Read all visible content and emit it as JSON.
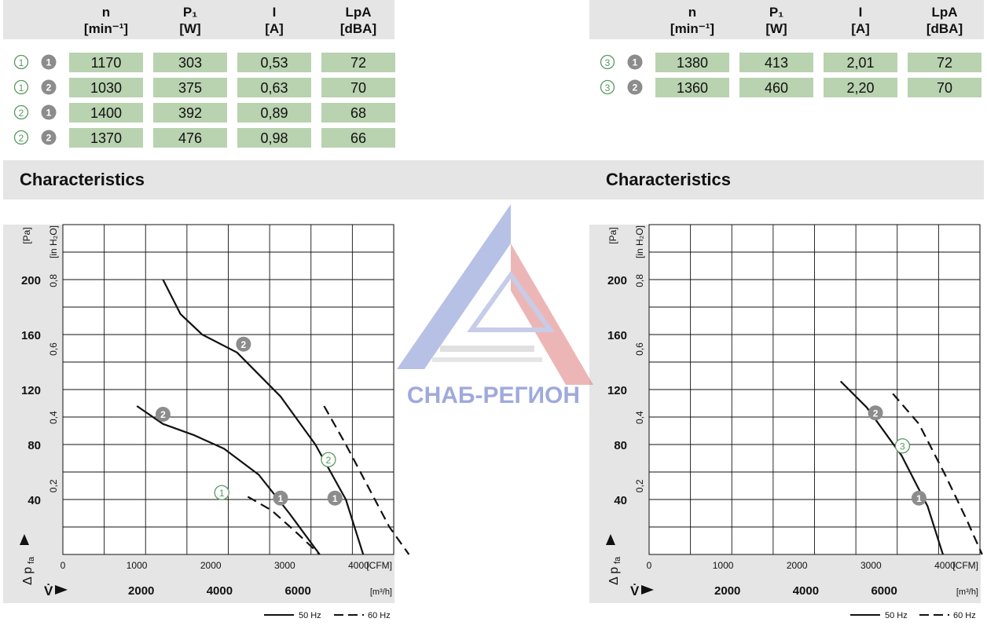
{
  "table_left": {
    "headers": [
      {
        "main": "n",
        "unit": "[min⁻¹]"
      },
      {
        "main": "P₁",
        "unit": "[W]"
      },
      {
        "main": "I",
        "unit": "[A]"
      },
      {
        "main": "LpA",
        "unit": "[dBA]"
      }
    ],
    "rows": [
      {
        "variant": "1",
        "curve": "1",
        "values": [
          "1170",
          "303",
          "0,53",
          "72"
        ]
      },
      {
        "variant": "1",
        "curve": "2",
        "values": [
          "1030",
          "375",
          "0,63",
          "70"
        ]
      },
      {
        "variant": "2",
        "curve": "1",
        "values": [
          "1400",
          "392",
          "0,89",
          "68"
        ]
      },
      {
        "variant": "2",
        "curve": "2",
        "values": [
          "1370",
          "476",
          "0,98",
          "66"
        ]
      }
    ]
  },
  "table_right": {
    "headers": [
      {
        "main": "n",
        "unit": "[min⁻¹]"
      },
      {
        "main": "P₁",
        "unit": "[W]"
      },
      {
        "main": "I",
        "unit": "[A]"
      },
      {
        "main": "LpA",
        "unit": "[dBA]"
      }
    ],
    "rows": [
      {
        "variant": "3",
        "curve": "1",
        "values": [
          "1380",
          "413",
          "2,01",
          "72"
        ]
      },
      {
        "variant": "3",
        "curve": "2",
        "values": [
          "1360",
          "460",
          "2,20",
          "70"
        ]
      }
    ]
  },
  "section_left": {
    "title": "Characteristics"
  },
  "section_right": {
    "title": "Characteristics"
  },
  "watermark": {
    "text": "СНАБ-РЕГИОН"
  },
  "legend": {
    "solid": "50 Hz",
    "dashed": "60 Hz"
  },
  "colors": {
    "cell_bg": "#b9d2b0",
    "header_bg": "#e5e5e5",
    "badge_gray": "#8c8c8c",
    "variant_green": "#5a9a63"
  },
  "chart_data": [
    {
      "type": "line",
      "title": "",
      "x_unit_cfm": "[CFM]",
      "x_unit_m3h": "[m³/h]",
      "y_label_pa": "[Pa]",
      "y_label_inh2o": "[in H₂O]",
      "axis_symbol_y": "Δ p",
      "axis_symbol_y_sub": "fa",
      "axis_symbol_x": "V̇",
      "xlim_m3h": [
        0,
        7600
      ],
      "ylim_pa": [
        0,
        240
      ],
      "cfm_ticks": [
        "0",
        "1000",
        "2000",
        "3000",
        "4000"
      ],
      "m3h_ticks": [
        "2000",
        "4000",
        "6000"
      ],
      "pa_ticks": [
        "40",
        "80",
        "120",
        "160",
        "200"
      ],
      "inh2o_ticks": [
        "0,2",
        "0,4",
        "0,6",
        "0,8"
      ],
      "series": [
        {
          "name": "2",
          "style": "solid",
          "x": [
            2300,
            2700,
            3200,
            4000,
            5000,
            5800,
            6500,
            6900
          ],
          "y": [
            200,
            175,
            160,
            147,
            115,
            80,
            40,
            0
          ]
        },
        {
          "name": "2",
          "style": "solid",
          "x": [
            1700,
            2300,
            3000,
            3700,
            4500,
            5200,
            5900
          ],
          "y": [
            108,
            95,
            87,
            77,
            58,
            30,
            0
          ]
        },
        {
          "name": "2",
          "style": "dashed",
          "x": [
            6000,
            6500,
            7000,
            7500,
            7950
          ],
          "y": [
            108,
            80,
            50,
            20,
            0
          ]
        },
        {
          "name": "1",
          "style": "dashed",
          "x": [
            4250,
            4800,
            5400,
            5900
          ],
          "y": [
            42,
            32,
            15,
            0
          ]
        }
      ],
      "badges": [
        {
          "label": "2",
          "kind": "gray",
          "x": 4150,
          "y": 153
        },
        {
          "label": "2",
          "kind": "gray",
          "x": 2300,
          "y": 102
        },
        {
          "label": "1",
          "kind": "gray",
          "x": 5000,
          "y": 41
        },
        {
          "label": "1",
          "kind": "gray",
          "x": 6250,
          "y": 41
        },
        {
          "label": "2",
          "kind": "green",
          "x": 6100,
          "y": 69
        },
        {
          "label": "1",
          "kind": "green",
          "x": 3650,
          "y": 45
        }
      ]
    },
    {
      "type": "line",
      "title": "",
      "x_unit_cfm": "[CFM]",
      "x_unit_m3h": "[m³/h]",
      "y_label_pa": "[Pa]",
      "y_label_inh2o": "[in H₂O]",
      "axis_symbol_y": "Δ p",
      "axis_symbol_y_sub": "fa",
      "axis_symbol_x": "V̇",
      "xlim_m3h": [
        0,
        7600
      ],
      "ylim_pa": [
        0,
        240
      ],
      "cfm_ticks": [
        "0",
        "1000",
        "2000",
        "3000",
        "4000"
      ],
      "m3h_ticks": [
        "2000",
        "4000",
        "6000"
      ],
      "pa_ticks": [
        "40",
        "80",
        "120",
        "160",
        "200"
      ],
      "inh2o_ticks": [
        "0,2",
        "0,4",
        "0,6",
        "0,8"
      ],
      "series": [
        {
          "name": "1",
          "style": "solid",
          "x": [
            4400,
            5000,
            5800,
            6400,
            6750
          ],
          "y": [
            126,
            107,
            72,
            35,
            0
          ]
        },
        {
          "name": "3",
          "style": "dashed",
          "x": [
            5600,
            6200,
            6800,
            7300,
            7650
          ],
          "y": [
            117,
            95,
            58,
            25,
            0
          ]
        }
      ],
      "badges": [
        {
          "label": "2",
          "kind": "gray",
          "x": 5200,
          "y": 103
        },
        {
          "label": "3",
          "kind": "green",
          "x": 5820,
          "y": 79
        },
        {
          "label": "1",
          "kind": "gray",
          "x": 6200,
          "y": 41
        }
      ]
    }
  ]
}
